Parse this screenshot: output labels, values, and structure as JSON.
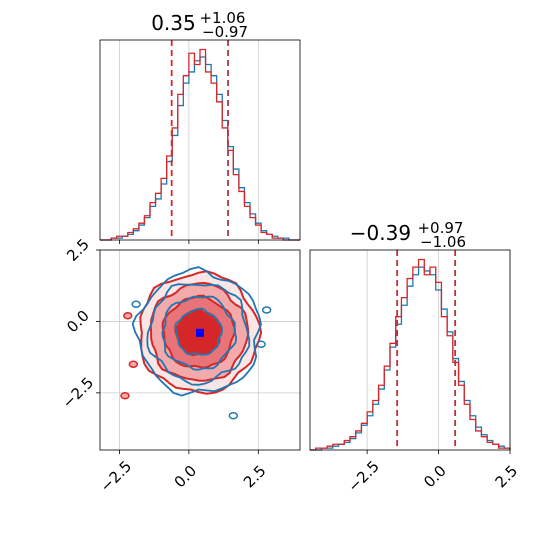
{
  "chart_data": [
    {
      "panel": "marginal-x",
      "type": "histogram",
      "title_value": "0.35",
      "title_plus": "+1.06",
      "title_minus": "−0.97",
      "xlim": [
        -3.2,
        4.0
      ],
      "xticks": [
        -2.5,
        0.0,
        2.5
      ],
      "quantile_lines": [
        -0.62,
        1.41
      ],
      "grid": true,
      "series": [
        {
          "color": "#1f77b4",
          "bin_edges": [
            -3.2,
            -3.0,
            -2.8,
            -2.6,
            -2.4,
            -2.2,
            -2.0,
            -1.8,
            -1.6,
            -1.4,
            -1.2,
            -1.0,
            -0.8,
            -0.6,
            -0.4,
            -0.2,
            0.0,
            0.2,
            0.4,
            0.6,
            0.8,
            1.0,
            1.2,
            1.4,
            1.6,
            1.8,
            2.0,
            2.2,
            2.4,
            2.6,
            2.8,
            3.0,
            3.2,
            3.4,
            3.6,
            3.8,
            4.0
          ],
          "counts": [
            0,
            0,
            1,
            1,
            2,
            3,
            5,
            8,
            12,
            18,
            22,
            30,
            42,
            56,
            72,
            84,
            90,
            96,
            98,
            94,
            88,
            78,
            64,
            50,
            38,
            28,
            20,
            14,
            9,
            5,
            3,
            2,
            1,
            1,
            0,
            0
          ]
        },
        {
          "color": "#d62728",
          "bin_edges": [
            -3.2,
            -3.0,
            -2.8,
            -2.6,
            -2.4,
            -2.2,
            -2.0,
            -1.8,
            -1.6,
            -1.4,
            -1.2,
            -1.0,
            -0.8,
            -0.6,
            -0.4,
            -0.2,
            0.0,
            0.2,
            0.4,
            0.6,
            0.8,
            1.0,
            1.2,
            1.4,
            1.6,
            1.8,
            2.0,
            2.2,
            2.4,
            2.6,
            2.8,
            3.0,
            3.2,
            3.4,
            3.6,
            3.8,
            4.0
          ],
          "counts": [
            0,
            0,
            1,
            2,
            2,
            4,
            6,
            9,
            13,
            20,
            25,
            33,
            45,
            60,
            78,
            88,
            100,
            94,
            102,
            90,
            84,
            74,
            60,
            48,
            35,
            26,
            18,
            12,
            8,
            4,
            3,
            1,
            1,
            0,
            0,
            0
          ]
        }
      ]
    },
    {
      "panel": "joint",
      "type": "contour",
      "xlim": [
        -3.2,
        4.0
      ],
      "ylim": [
        -4.5,
        2.5
      ],
      "xticks": [
        -2.5,
        0.0,
        2.5
      ],
      "yticks": [
        2.5,
        0.0,
        -2.5
      ],
      "grid": true,
      "truth_point": {
        "x": 0.4,
        "y": -0.4,
        "color": "#0000ff"
      },
      "series": [
        {
          "color": "#1f77b4",
          "center": [
            0.35,
            -0.39
          ],
          "sigma": [
            1.02,
            1.02
          ],
          "levels_sigma": [
            1.0,
            1.6,
            2.2,
            2.7
          ]
        },
        {
          "color": "#d62728",
          "center": [
            0.35,
            -0.39
          ],
          "sigma": [
            1.02,
            1.02
          ],
          "levels_sigma": [
            1.0,
            1.6,
            2.2,
            2.7
          ]
        }
      ]
    },
    {
      "panel": "marginal-y",
      "type": "histogram",
      "title_value": "−0.39",
      "title_plus": "+0.97",
      "title_minus": "−1.06",
      "xlim": [
        -4.5,
        2.5
      ],
      "xticks": [
        -2.5,
        0.0,
        2.5
      ],
      "quantile_lines": [
        -1.45,
        0.58
      ],
      "grid": true,
      "series": [
        {
          "color": "#1f77b4",
          "bin_edges": [
            -4.5,
            -4.3,
            -4.1,
            -3.9,
            -3.7,
            -3.5,
            -3.3,
            -3.1,
            -2.9,
            -2.7,
            -2.5,
            -2.3,
            -2.1,
            -1.9,
            -1.7,
            -1.5,
            -1.3,
            -1.1,
            -0.9,
            -0.7,
            -0.5,
            -0.3,
            -0.1,
            0.1,
            0.3,
            0.5,
            0.7,
            0.9,
            1.1,
            1.3,
            1.5,
            1.7,
            1.9,
            2.1,
            2.3,
            2.5
          ],
          "counts": [
            0,
            0,
            1,
            1,
            2,
            3,
            4,
            6,
            9,
            13,
            18,
            24,
            32,
            42,
            54,
            66,
            76,
            86,
            92,
            96,
            94,
            92,
            84,
            74,
            62,
            48,
            36,
            26,
            18,
            12,
            8,
            5,
            3,
            2,
            1
          ]
        },
        {
          "color": "#d62728",
          "bin_edges": [
            -4.5,
            -4.3,
            -4.1,
            -3.9,
            -3.7,
            -3.5,
            -3.3,
            -3.1,
            -2.9,
            -2.7,
            -2.5,
            -2.3,
            -2.1,
            -1.9,
            -1.7,
            -1.5,
            -1.3,
            -1.1,
            -0.9,
            -0.7,
            -0.5,
            -0.3,
            -0.1,
            0.1,
            0.3,
            0.5,
            0.7,
            0.9,
            1.1,
            1.3,
            1.5,
            1.7,
            1.9,
            2.1,
            2.3,
            2.5
          ],
          "counts": [
            0,
            1,
            1,
            2,
            3,
            3,
            5,
            7,
            10,
            14,
            20,
            26,
            34,
            44,
            56,
            70,
            80,
            90,
            96,
            100,
            92,
            96,
            88,
            70,
            60,
            46,
            34,
            24,
            16,
            10,
            7,
            4,
            3,
            1,
            1
          ]
        }
      ]
    }
  ]
}
